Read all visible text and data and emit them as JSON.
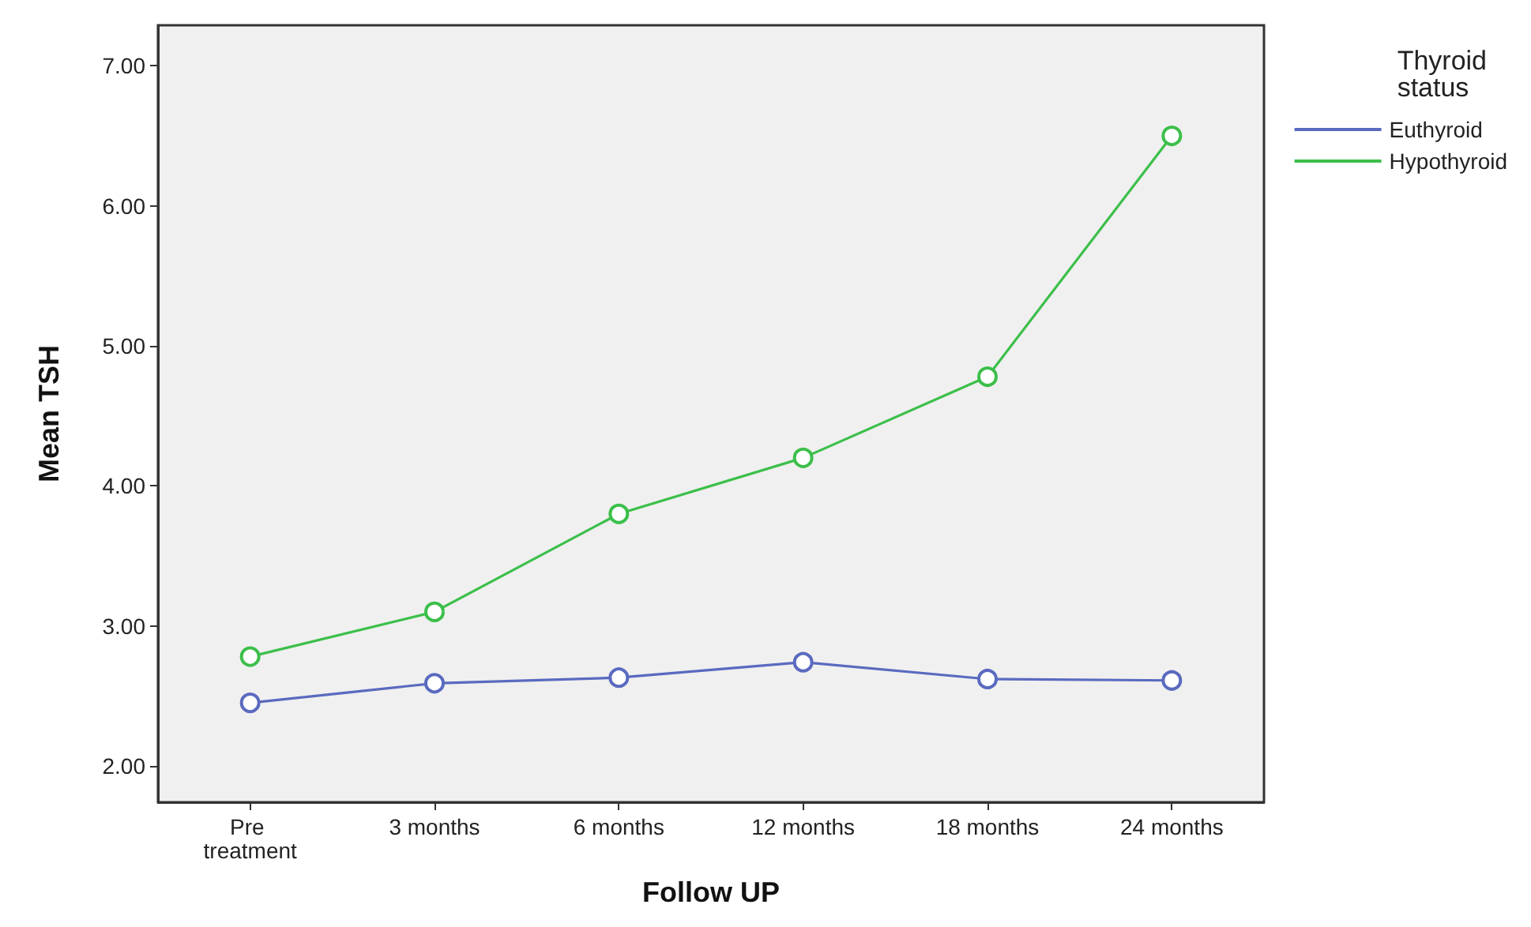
{
  "chart_data": {
    "type": "line",
    "xlabel": "Follow UP",
    "ylabel": "Mean TSH",
    "legend_title": "Thyroid status",
    "categories": [
      "Pre treatment",
      "3 months",
      "6 months",
      "12 months",
      "18 months",
      "24 months"
    ],
    "series": [
      {
        "name": "Euthyroid",
        "color": "#5a6abf",
        "values": [
          2.45,
          2.59,
          2.63,
          2.74,
          2.62,
          2.61
        ]
      },
      {
        "name": "Hypothyroid",
        "color": "#3cbf4a",
        "values": [
          2.78,
          3.1,
          3.8,
          4.2,
          4.78,
          6.5
        ]
      }
    ],
    "ylim": [
      1.74,
      7.29
    ],
    "yticks": [
      {
        "value": 2,
        "label": "2.00"
      },
      {
        "value": 3,
        "label": "3.00"
      },
      {
        "value": 4,
        "label": "4.00"
      },
      {
        "value": 5,
        "label": "5.00"
      },
      {
        "value": 6,
        "label": "6.00"
      },
      {
        "value": 7,
        "label": "7.00"
      }
    ],
    "grid": false,
    "legend": "top right",
    "marker": "circle",
    "line_style": "solid"
  }
}
